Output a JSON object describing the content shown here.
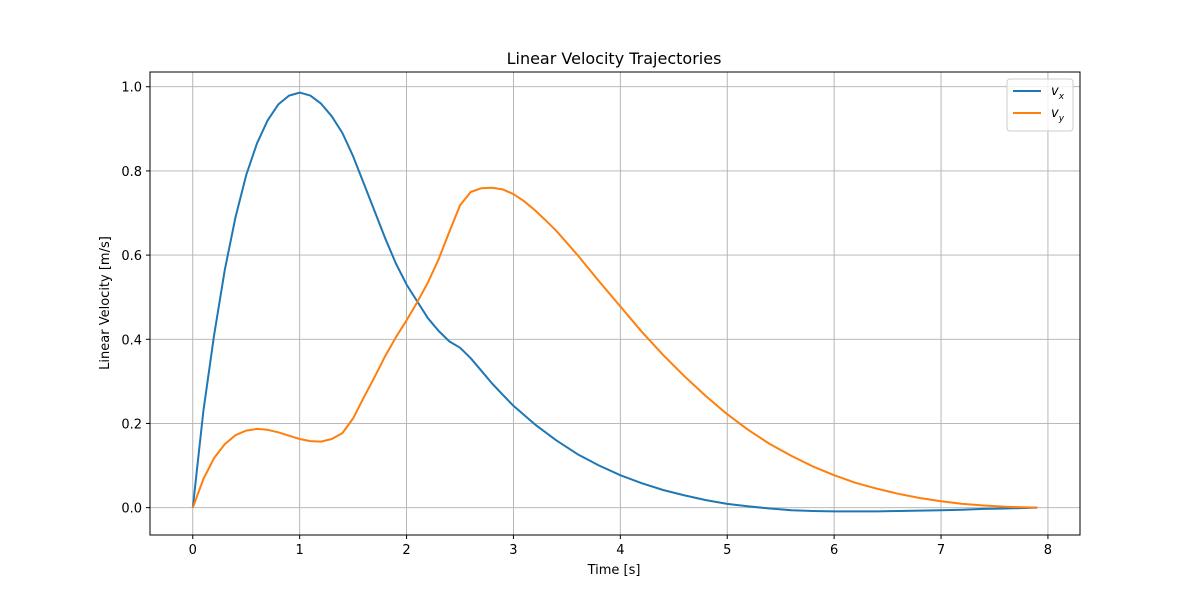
{
  "chart_data": {
    "type": "line",
    "title": "Linear Velocity Trajectories",
    "xlabel": "Time [s]",
    "ylabel": "Linear Velocity [m/s]",
    "xlim": [
      -0.4,
      8.3
    ],
    "ylim": [
      -0.065,
      1.035
    ],
    "x_ticks": [
      0,
      1,
      2,
      3,
      4,
      5,
      6,
      7,
      8
    ],
    "x_tick_labels": [
      "0",
      "1",
      "2",
      "3",
      "4",
      "5",
      "6",
      "7",
      "8"
    ],
    "y_ticks": [
      0.0,
      0.2,
      0.4,
      0.6,
      0.8,
      1.0
    ],
    "y_tick_labels": [
      "0.0",
      "0.2",
      "0.4",
      "0.6",
      "0.8",
      "1.0"
    ],
    "grid": true,
    "legend_position": "top-right",
    "series": [
      {
        "name": "v",
        "subscript": "x",
        "color": "#1f77b4",
        "x": [
          0,
          0.1,
          0.2,
          0.3,
          0.4,
          0.5,
          0.6,
          0.7,
          0.8,
          0.9,
          1.0,
          1.1,
          1.2,
          1.3,
          1.4,
          1.5,
          1.6,
          1.7,
          1.8,
          1.9,
          2.0,
          2.1,
          2.2,
          2.3,
          2.4,
          2.5,
          2.6,
          2.7,
          2.8,
          2.9,
          3.0,
          3.2,
          3.4,
          3.6,
          3.8,
          4.0,
          4.2,
          4.4,
          4.6,
          4.8,
          5.0,
          5.2,
          5.4,
          5.6,
          5.8,
          6.0,
          6.2,
          6.4,
          6.6,
          6.8,
          7.0,
          7.2,
          7.4,
          7.6,
          7.9
        ],
        "y": [
          0.0,
          0.23,
          0.41,
          0.565,
          0.69,
          0.79,
          0.865,
          0.92,
          0.958,
          0.979,
          0.986,
          0.979,
          0.96,
          0.93,
          0.89,
          0.835,
          0.77,
          0.705,
          0.64,
          0.58,
          0.53,
          0.49,
          0.45,
          0.42,
          0.395,
          0.38,
          0.355,
          0.325,
          0.295,
          0.268,
          0.242,
          0.198,
          0.16,
          0.127,
          0.1,
          0.077,
          0.058,
          0.042,
          0.029,
          0.018,
          0.009,
          0.003,
          -0.002,
          -0.006,
          -0.008,
          -0.009,
          -0.009,
          -0.009,
          -0.008,
          -0.007,
          -0.006,
          -0.005,
          -0.003,
          -0.002,
          0.0
        ]
      },
      {
        "name": "v",
        "subscript": "y",
        "color": "#ff7f0e",
        "x": [
          0,
          0.1,
          0.2,
          0.3,
          0.4,
          0.5,
          0.6,
          0.7,
          0.8,
          0.9,
          1.0,
          1.1,
          1.2,
          1.3,
          1.4,
          1.5,
          1.6,
          1.7,
          1.8,
          1.9,
          2.0,
          2.1,
          2.2,
          2.3,
          2.4,
          2.5,
          2.6,
          2.7,
          2.8,
          2.9,
          3.0,
          3.1,
          3.2,
          3.3,
          3.4,
          3.6,
          3.8,
          4.0,
          4.2,
          4.4,
          4.6,
          4.8,
          5.0,
          5.2,
          5.4,
          5.6,
          5.8,
          6.0,
          6.2,
          6.4,
          6.6,
          6.8,
          7.0,
          7.2,
          7.4,
          7.6,
          7.9
        ],
        "y": [
          0.0,
          0.068,
          0.118,
          0.151,
          0.172,
          0.183,
          0.187,
          0.185,
          0.179,
          0.171,
          0.163,
          0.158,
          0.157,
          0.163,
          0.177,
          0.212,
          0.262,
          0.31,
          0.36,
          0.405,
          0.445,
          0.488,
          0.535,
          0.59,
          0.655,
          0.718,
          0.75,
          0.759,
          0.76,
          0.756,
          0.745,
          0.728,
          0.707,
          0.683,
          0.658,
          0.6,
          0.538,
          0.478,
          0.418,
          0.363,
          0.312,
          0.265,
          0.222,
          0.184,
          0.151,
          0.123,
          0.098,
          0.077,
          0.059,
          0.045,
          0.033,
          0.023,
          0.015,
          0.009,
          0.005,
          0.002,
          0.0
        ]
      }
    ]
  }
}
